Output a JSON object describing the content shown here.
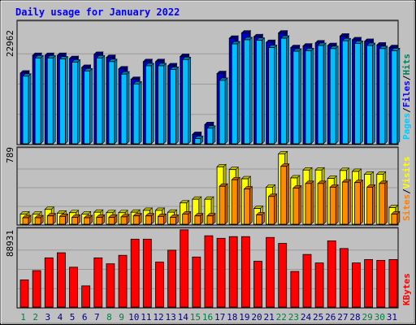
{
  "chart_data": [
    {
      "type": "bar",
      "title": "Daily usage for January 2022",
      "categories": [
        "1",
        "2",
        "3",
        "4",
        "5",
        "6",
        "7",
        "8",
        "9",
        "10",
        "11",
        "12",
        "13",
        "14",
        "15",
        "16",
        "17",
        "18",
        "19",
        "20",
        "21",
        "22",
        "23",
        "24",
        "25",
        "26",
        "27",
        "28",
        "29",
        "30",
        "31"
      ],
      "weekend_days": [
        "1",
        "2",
        "8",
        "9",
        "15",
        "16",
        "22",
        "23",
        "29",
        "30"
      ],
      "ylabel_parts": [
        "Pages",
        "/",
        "Files",
        "/",
        "Hits"
      ],
      "ytick_label": "22962",
      "ylim": [
        0,
        22962
      ],
      "series": [
        {
          "name": "Hits",
          "values": [
            13600,
            17000,
            17000,
            17000,
            16400,
            14700,
            17200,
            16600,
            14400,
            12400,
            15800,
            15800,
            15000,
            16800,
            1800,
            3700,
            13500,
            20300,
            21300,
            20600,
            19500,
            21300,
            18500,
            18800,
            19400,
            18900,
            20700,
            20000,
            19700,
            19000,
            18500
          ]
        },
        {
          "name": "Files",
          "values": [
            13000,
            16500,
            16500,
            16300,
            15700,
            14000,
            16500,
            15800,
            13400,
            11500,
            15000,
            15000,
            14300,
            16200,
            1000,
            3000,
            12200,
            19200,
            20000,
            19900,
            18500,
            20300,
            17800,
            17900,
            18900,
            18300,
            19800,
            19300,
            18900,
            18300,
            17900
          ]
        },
        {
          "name": "Pages",
          "values": [
            0,
            0,
            0,
            0,
            0,
            0,
            0,
            0,
            0,
            0,
            0,
            0,
            0,
            0,
            0,
            0,
            0,
            0,
            0,
            0,
            0,
            0,
            0,
            0,
            0,
            0,
            0,
            0,
            0,
            0,
            0
          ]
        }
      ]
    },
    {
      "type": "bar",
      "ylabel_parts": [
        "Sites",
        "/",
        "Visits"
      ],
      "ytick_label": "789",
      "ylim": [
        0,
        789
      ],
      "series": [
        {
          "name": "Visits",
          "values": [
            110,
            110,
            160,
            120,
            125,
            110,
            130,
            125,
            125,
            130,
            150,
            150,
            130,
            230,
            270,
            270,
            620,
            590,
            490,
            170,
            400,
            760,
            500,
            585,
            585,
            495,
            580,
            570,
            540,
            540,
            180
          ]
        },
        {
          "name": "Sites",
          "values": [
            70,
            70,
            90,
            85,
            75,
            70,
            75,
            75,
            80,
            90,
            90,
            85,
            75,
            110,
            90,
            90,
            410,
            480,
            380,
            100,
            300,
            625,
            390,
            440,
            440,
            400,
            455,
            450,
            400,
            440,
            110
          ]
        }
      ]
    },
    {
      "type": "bar",
      "ylabel_parts": [
        "KBytes"
      ],
      "ytick_label": "88931",
      "ylim": [
        0,
        88931
      ],
      "series": [
        {
          "name": "KBytes",
          "values": [
            32000,
            43000,
            58000,
            64000,
            47000,
            25000,
            58000,
            51000,
            61000,
            80000,
            80000,
            53000,
            67000,
            91000,
            59000,
            84000,
            81000,
            83000,
            83000,
            54000,
            82000,
            75000,
            42000,
            62000,
            52000,
            78000,
            69000,
            52000,
            56000,
            55000,
            56000
          ]
        }
      ]
    }
  ],
  "colors": {
    "background": "#c0c0c0",
    "title": "#0000ff",
    "weekday_label": "#000080",
    "weekend_label": "#007f40",
    "hits": "#00805c",
    "files": "#0000ff",
    "pages": "#00ccff",
    "visits": "#ffff00",
    "sites": "#ff8000",
    "kbytes": "#ff0000",
    "kbytes_label": "#ff0000",
    "grid": "#808080"
  }
}
